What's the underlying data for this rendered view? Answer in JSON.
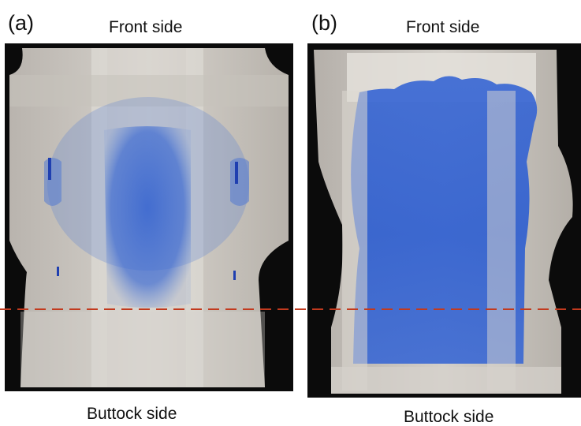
{
  "panels": [
    {
      "letter": "(a)",
      "top_label": "Front side",
      "bottom_label": "Buttock side"
    },
    {
      "letter": "(b)",
      "top_label": "Front side",
      "bottom_label": "Buttock side"
    }
  ],
  "colors": {
    "background": "#ffffff",
    "photo_backdrop": "#0b0b0b",
    "diaper_base": "#cdc8c2",
    "stain_blue": "#2f5fd0",
    "guide_line": "#c23a1e"
  }
}
